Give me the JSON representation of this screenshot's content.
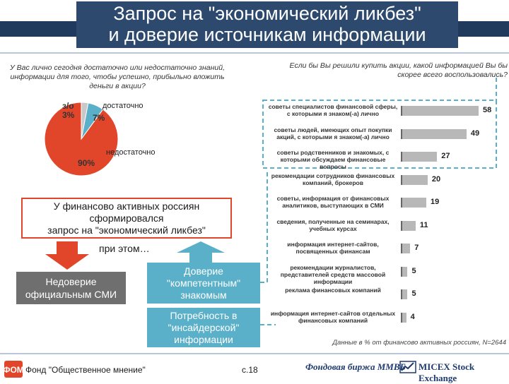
{
  "title": {
    "line1": "Запрос на \"экономический ликбез\"",
    "line2": "и доверие источникам информации"
  },
  "left_question": "У Вас лично сегодня достаточно или недостаточно знаний, информации для того, чтобы успешно, прибыльно вложить деньги в акции?",
  "right_question": "Если бы Вы решили купить акции, какой информацией Вы бы скорее всего воспользовались?",
  "pie": {
    "slices": [
      {
        "label": "недостаточно",
        "value_label": "90%",
        "value": 90,
        "color": "#e2462a"
      },
      {
        "label": "достаточно",
        "value_label": "7%",
        "value": 7,
        "color": "#5ab0c8"
      },
      {
        "label": "з/о",
        "value_label": "3%",
        "value": 3,
        "color": "#c8c8c8"
      }
    ]
  },
  "conclusion": {
    "line1": "У финансово активных россиян",
    "line2": "сформировался",
    "line3": "запрос на \"экономический ликбез\""
  },
  "pri_etom": "при этом…",
  "distrust": {
    "line1": "Недоверие",
    "line2": "официальным СМИ"
  },
  "trust": {
    "line1": "Доверие",
    "line2": "\"компетентным\"",
    "line3": "знакомым"
  },
  "insider": {
    "line1": "Потребность в",
    "line2": "\"инсайдерской\"",
    "line3": "информации"
  },
  "bars": [
    {
      "label": "советы специалистов финансовой сферы, с которыми я знаком(-а) лично",
      "value": 58,
      "highlight": true
    },
    {
      "label": "советы людей, имеющих опыт покупки акций, с которыми я знаком(-а) лично",
      "value": 49,
      "highlight": true
    },
    {
      "label": "советы родственников и знакомых, с которыми обсуждаем финансовые вопросы",
      "value": 27,
      "highlight": true
    },
    {
      "label": "рекомендации сотрудников финансовых компаний, брокеров",
      "value": 20,
      "highlight": false
    },
    {
      "label": "советы, информация от финансовых аналитиков, выступающих в СМИ",
      "value": 19,
      "highlight": false
    },
    {
      "label": "сведения, полученные на семинарах, учебных курсах",
      "value": 11,
      "highlight": false
    },
    {
      "label": "информация интернет-сайтов, посвященных финансам",
      "value": 7,
      "highlight": false
    },
    {
      "label": "рекомендации журналистов, представителей средств массовой информации",
      "value": 5,
      "highlight": false
    },
    {
      "label": "реклама финансовых компаний",
      "value": 5,
      "highlight": false
    },
    {
      "label": "информация интернет-сайтов отдельных финансовых компаний",
      "value": 4,
      "highlight": false
    }
  ],
  "source_note": "Данные в % от финансово активных россиян, N=2644",
  "footer": {
    "org": "Фонд \"Общественное мнение\"",
    "page": "с.18",
    "logo1": "Фондовая биржа ММВБ",
    "logo2": "MICEX Stock Exchange"
  },
  "colors": {
    "accent_red": "#e2462a",
    "accent_blue": "#5ab0c8",
    "title_blue": "#2d4a6e"
  }
}
